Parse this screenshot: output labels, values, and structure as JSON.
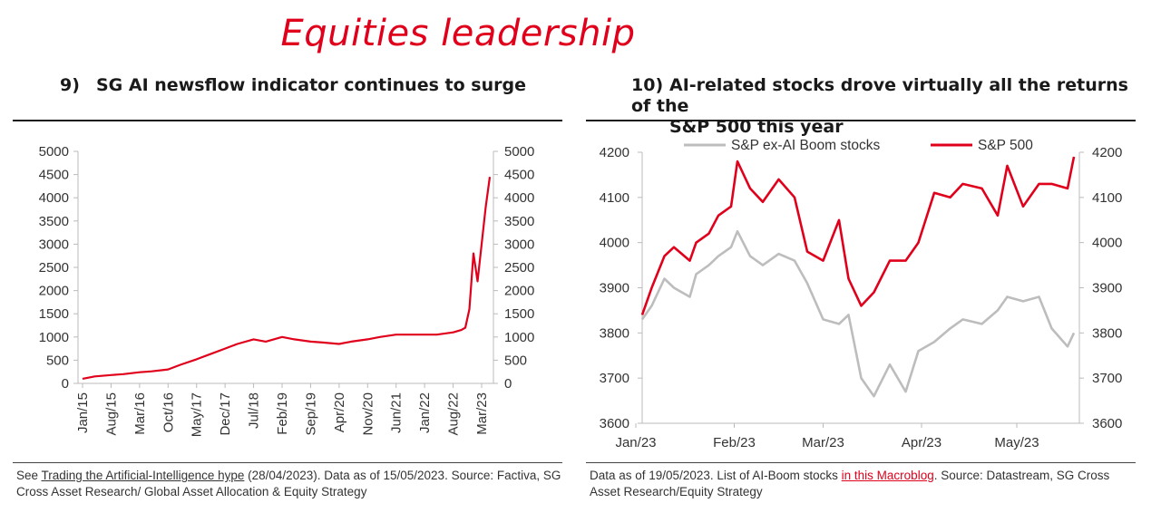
{
  "header": {
    "title": "Equities leadership"
  },
  "left": {
    "number": "9)",
    "title": "SG AI newsflow indicator continues to surge",
    "footer": {
      "pre": "See ",
      "link": "Trading the Artificial-Intelligence hype",
      "post": " (28/04/2023). Data as of 15/05/2023. Source: Factiva, SG Cross Asset Research/ Global Asset Allocation & Equity Strategy"
    }
  },
  "right": {
    "number": "10)",
    "title_line1": "AI-related stocks drove virtually all the returns of the",
    "title_line2": "S&P 500 this year",
    "footer": {
      "pre": "Data as of 19/05/2023. List of AI-Boom stocks ",
      "link": "in this Macroblog",
      "post": ". Source: Datastream, SG Cross Asset Research/Equity Strategy"
    }
  },
  "chart_data": [
    {
      "type": "line",
      "title": "SG AI newsflow indicator continues to surge",
      "xlabel": "",
      "ylabel": "",
      "ylim": [
        0,
        5000
      ],
      "y_ticks": [
        0,
        500,
        1000,
        1500,
        2000,
        2500,
        3000,
        3500,
        4000,
        4500,
        5000
      ],
      "y_tick_labels": [
        "0",
        "500",
        "1000",
        "1500",
        "2000",
        "2500",
        "3000",
        "3500",
        "4000",
        "4500",
        "5000"
      ],
      "dual_axis": true,
      "x_tick_labels": [
        "Jan/15",
        "Aug/15",
        "Mar/16",
        "Oct/16",
        "May/17",
        "Dec/17",
        "Jul/18",
        "Feb/19",
        "Sep/19",
        "Apr/20",
        "Nov/20",
        "Jun/21",
        "Jan/22",
        "Aug/22",
        "Mar/23"
      ],
      "grid": false,
      "color": "#e0001b",
      "series": [
        {
          "x": [
            "Jan/15",
            "Apr/15",
            "Aug/15",
            "Nov/15",
            "Mar/16",
            "Jun/16",
            "Oct/16",
            "Jan/17",
            "May/17",
            "Aug/17",
            "Dec/17",
            "Mar/18",
            "Jul/18",
            "Oct/18",
            "Feb/19",
            "May/19",
            "Sep/19",
            "Dec/19",
            "Apr/20",
            "Jul/20",
            "Nov/20",
            "Feb/21",
            "Jun/21",
            "Sep/21",
            "Jan/22",
            "Apr/22",
            "Aug/22",
            "Oct/22",
            "Nov/22",
            "Dec/22",
            "Jan/23",
            "Feb/23",
            "Mar/23",
            "Apr/23",
            "May/23"
          ],
          "values": [
            100,
            150,
            180,
            200,
            240,
            260,
            300,
            400,
            520,
            620,
            750,
            850,
            950,
            900,
            1000,
            950,
            900,
            880,
            850,
            900,
            950,
            1000,
            1050,
            1050,
            1050,
            1050,
            1100,
            1150,
            1200,
            1600,
            2800,
            2200,
            3000,
            3800,
            4450
          ]
        }
      ]
    },
    {
      "type": "line",
      "title": "AI-related stocks drove virtually all the returns of the S&P 500 this year",
      "xlabel": "",
      "ylabel": "",
      "ylim": [
        3600,
        4200
      ],
      "y_ticks": [
        3600,
        3700,
        3800,
        3900,
        4000,
        4100,
        4200
      ],
      "y_tick_labels": [
        "3600",
        "3700",
        "3800",
        "3900",
        "4000",
        "4100",
        "4200"
      ],
      "dual_axis": true,
      "x_tick_labels": [
        "Jan/23",
        "Feb/23",
        "Mar/23",
        "Apr/23",
        "May/23"
      ],
      "legend": "top",
      "grid": false,
      "series": [
        {
          "name": "S&P ex-AI Boom stocks",
          "color": "#bdbdbd",
          "x": [
            "2023-01-03",
            "2023-01-06",
            "2023-01-10",
            "2023-01-13",
            "2023-01-18",
            "2023-01-20",
            "2023-01-24",
            "2023-01-27",
            "2023-01-31",
            "2023-02-02",
            "2023-02-06",
            "2023-02-10",
            "2023-02-15",
            "2023-02-20",
            "2023-02-24",
            "2023-03-01",
            "2023-03-06",
            "2023-03-09",
            "2023-03-13",
            "2023-03-17",
            "2023-03-22",
            "2023-03-27",
            "2023-03-31",
            "2023-04-05",
            "2023-04-10",
            "2023-04-14",
            "2023-04-20",
            "2023-04-25",
            "2023-04-28",
            "2023-05-03",
            "2023-05-08",
            "2023-05-12",
            "2023-05-17",
            "2023-05-19"
          ],
          "values": [
            3830,
            3860,
            3920,
            3900,
            3880,
            3930,
            3950,
            3970,
            3990,
            4025,
            3970,
            3950,
            3975,
            3960,
            3910,
            3830,
            3820,
            3840,
            3700,
            3660,
            3730,
            3670,
            3760,
            3780,
            3810,
            3830,
            3820,
            3850,
            3880,
            3870,
            3880,
            3810,
            3770,
            3800
          ]
        },
        {
          "name": "S&P 500",
          "color": "#e0001b",
          "x": [
            "2023-01-03",
            "2023-01-06",
            "2023-01-10",
            "2023-01-13",
            "2023-01-18",
            "2023-01-20",
            "2023-01-24",
            "2023-01-27",
            "2023-01-31",
            "2023-02-02",
            "2023-02-06",
            "2023-02-10",
            "2023-02-15",
            "2023-02-20",
            "2023-02-24",
            "2023-03-01",
            "2023-03-06",
            "2023-03-09",
            "2023-03-13",
            "2023-03-17",
            "2023-03-22",
            "2023-03-27",
            "2023-03-31",
            "2023-04-05",
            "2023-04-10",
            "2023-04-14",
            "2023-04-20",
            "2023-04-25",
            "2023-04-28",
            "2023-05-03",
            "2023-05-08",
            "2023-05-12",
            "2023-05-17",
            "2023-05-19"
          ],
          "values": [
            3840,
            3900,
            3970,
            3990,
            3960,
            4000,
            4020,
            4060,
            4080,
            4180,
            4120,
            4090,
            4140,
            4100,
            3980,
            3960,
            4050,
            3920,
            3860,
            3890,
            3960,
            3960,
            4000,
            4110,
            4100,
            4130,
            4120,
            4060,
            4170,
            4080,
            4130,
            4130,
            4120,
            4190
          ]
        }
      ]
    }
  ]
}
